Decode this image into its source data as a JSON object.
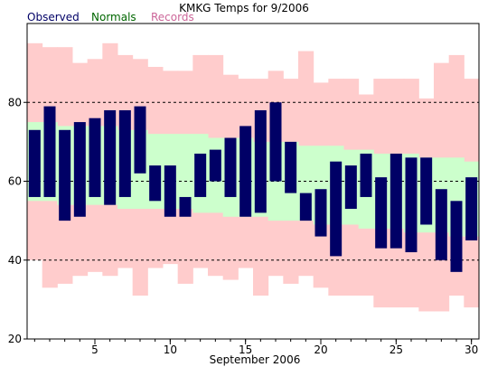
{
  "chart_data": {
    "type": "bar",
    "title": "KMKG Temps for 9/2006",
    "xlabel": "September 2006",
    "ylabel": "",
    "xlim": [
      0.5,
      30.5
    ],
    "ylim": [
      20,
      100
    ],
    "yticks": [
      20,
      40,
      60,
      80
    ],
    "xticks": [
      5,
      10,
      15,
      20,
      25,
      30
    ],
    "gridlines_y": [
      40,
      60,
      80
    ],
    "legend_position": "top-left",
    "days": [
      1,
      2,
      3,
      4,
      5,
      6,
      7,
      8,
      9,
      10,
      11,
      12,
      13,
      14,
      15,
      16,
      17,
      18,
      19,
      20,
      21,
      22,
      23,
      24,
      25,
      26,
      27,
      28,
      29,
      30
    ],
    "series": [
      {
        "name": "Observed",
        "color": "#000066",
        "low": [
          56,
          56,
          50,
          51,
          56,
          54,
          56,
          62,
          55,
          51,
          51,
          56,
          60,
          56,
          51,
          52,
          60,
          57,
          50,
          46,
          41,
          53,
          56,
          43,
          43,
          42,
          49,
          40,
          37,
          45
        ],
        "high": [
          73,
          79,
          73,
          75,
          76,
          78,
          78,
          79,
          64,
          64,
          56,
          67,
          68,
          71,
          74,
          78,
          80,
          70,
          57,
          58,
          65,
          64,
          67,
          61,
          67,
          66,
          66,
          58,
          55,
          61
        ]
      },
      {
        "name": "Normals",
        "color": "#ccffcc",
        "low": [
          55,
          55,
          54,
          54,
          54,
          54,
          53,
          53,
          53,
          53,
          53,
          52,
          52,
          51,
          51,
          51,
          50,
          50,
          50,
          49,
          49,
          49,
          48,
          48,
          48,
          47,
          47,
          47,
          46,
          46
        ],
        "high": [
          75,
          75,
          74,
          74,
          74,
          74,
          73,
          73,
          72,
          72,
          72,
          72,
          71,
          71,
          71,
          70,
          70,
          70,
          69,
          69,
          69,
          68,
          68,
          67,
          67,
          67,
          66,
          66,
          66,
          65
        ]
      },
      {
        "name": "Records",
        "color": "#ffcccc",
        "low": [
          40,
          33,
          34,
          36,
          37,
          36,
          38,
          31,
          38,
          39,
          34,
          38,
          36,
          35,
          38,
          31,
          36,
          34,
          36,
          33,
          31,
          31,
          31,
          28,
          28,
          28,
          27,
          27,
          31,
          28
        ],
        "high": [
          95,
          94,
          94,
          90,
          91,
          95,
          92,
          91,
          89,
          88,
          88,
          92,
          92,
          87,
          86,
          86,
          88,
          86,
          93,
          85,
          86,
          86,
          82,
          86,
          86,
          86,
          81,
          90,
          92,
          86
        ]
      }
    ]
  }
}
